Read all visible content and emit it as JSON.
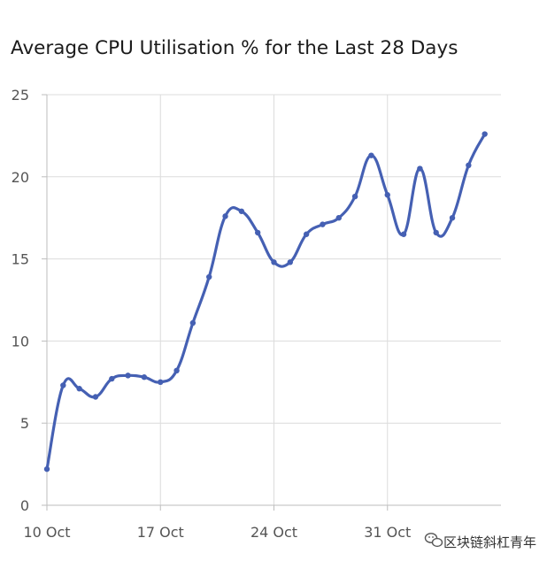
{
  "chart_data": {
    "type": "line",
    "title": "Average CPU Utilisation % for the Last 28 Days",
    "xlabel": "",
    "ylabel": "",
    "ylim": [
      0,
      25
    ],
    "yticks": [
      0,
      5,
      10,
      15,
      20,
      25
    ],
    "x_range": [
      "2023-10-10",
      "2023-11-07"
    ],
    "xticks": [
      {
        "date": "2023-10-10",
        "label": "10 Oct"
      },
      {
        "date": "2023-10-17",
        "label": "17 Oct"
      },
      {
        "date": "2023-10-24",
        "label": "24 Oct"
      },
      {
        "date": "2023-10-31",
        "label": "31 Oct"
      }
    ],
    "grid": true,
    "legend": "none",
    "series": [
      {
        "color": "#4560b3",
        "x": [
          "2023-10-10",
          "2023-10-11",
          "2023-10-12",
          "2023-10-13",
          "2023-10-14",
          "2023-10-15",
          "2023-10-16",
          "2023-10-17",
          "2023-10-18",
          "2023-10-19",
          "2023-10-20",
          "2023-10-21",
          "2023-10-22",
          "2023-10-23",
          "2023-10-24",
          "2023-10-25",
          "2023-10-26",
          "2023-10-27",
          "2023-10-28",
          "2023-10-29",
          "2023-10-30",
          "2023-10-31",
          "2023-11-01",
          "2023-11-02",
          "2023-11-03",
          "2023-11-04",
          "2023-11-05",
          "2023-11-06"
        ],
        "values": [
          2.2,
          7.3,
          7.1,
          6.6,
          7.7,
          7.9,
          7.8,
          7.5,
          8.2,
          11.1,
          13.9,
          17.6,
          17.9,
          16.6,
          14.8,
          14.8,
          16.5,
          17.1,
          17.5,
          18.8,
          21.3,
          18.9,
          16.5,
          20.5,
          16.6,
          17.5,
          20.7,
          22.6
        ]
      }
    ]
  },
  "watermark": {
    "icon": "wechat-icon",
    "text": "区块链斜杠青年"
  }
}
